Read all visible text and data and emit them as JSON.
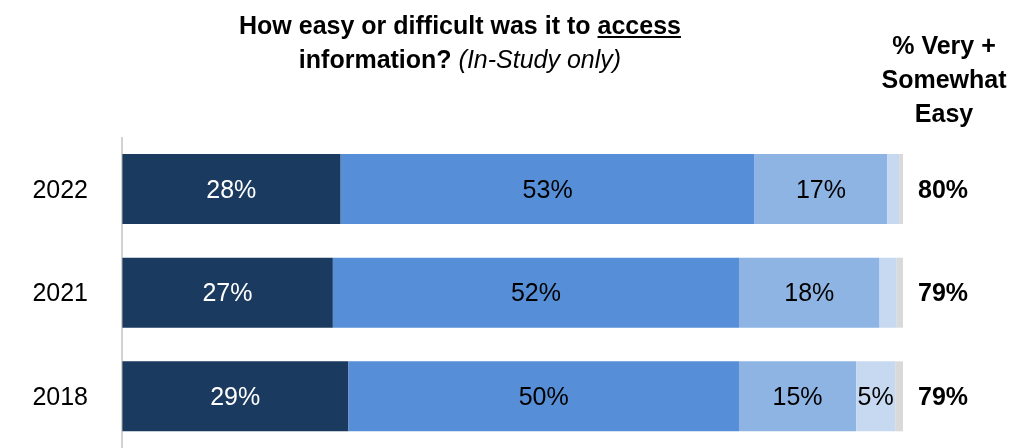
{
  "chart_data": {
    "type": "bar",
    "orientation": "horizontal",
    "stacked": true,
    "xlim": [
      0,
      100
    ],
    "title": "How easy or difficult was it to access information?",
    "subtitle": "(In-Study only)",
    "annotations": [
      "% Very + Somewhat Easy",
      "80%",
      "79%",
      "79%"
    ],
    "categories": [
      "2022",
      "2021",
      "2018"
    ],
    "series": [
      {
        "color": "#1b3a60",
        "values": [
          28,
          27,
          29
        ],
        "value_labels": [
          "28%",
          "27%",
          "29%"
        ]
      },
      {
        "color": "#568fd8",
        "values": [
          53,
          52,
          50
        ],
        "value_labels": [
          "53%",
          "52%",
          "50%"
        ]
      },
      {
        "color": "#8db4e3",
        "values": [
          17,
          18,
          15
        ],
        "value_labels": [
          "17%",
          "18%",
          "15%"
        ]
      },
      {
        "color": "#c6d9f1",
        "values": [
          1.5,
          2.2,
          5
        ],
        "value_labels": [
          null,
          null,
          "5%"
        ]
      },
      {
        "color": "#d9d9d9",
        "values": [
          0.5,
          0.8,
          1
        ],
        "value_labels": [
          null,
          null,
          null
        ]
      }
    ],
    "grid": false,
    "legend": false
  }
}
